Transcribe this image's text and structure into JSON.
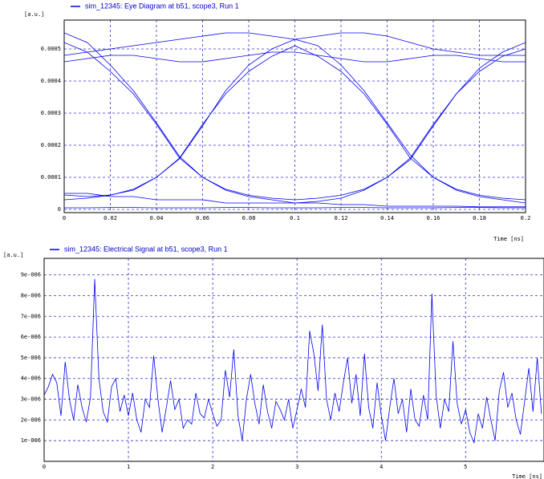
{
  "chart_data": [
    {
      "type": "eye",
      "y_unit": "[a.u.]",
      "x_label": "Time [ns]",
      "xlim": [
        0,
        0.2
      ],
      "xticks": [
        0,
        0.02,
        0.04,
        0.06,
        0.08,
        0.1,
        0.12,
        0.14,
        0.16,
        0.18,
        0.2
      ],
      "ylim": [
        -1e-05,
        0.00059
      ],
      "yticks": [
        0,
        0.0001,
        0.0002,
        0.0003,
        0.0004,
        0.0005
      ],
      "grid": true,
      "x": [
        0,
        0.01,
        0.02,
        0.03,
        0.04,
        0.05,
        0.06,
        0.07,
        0.08,
        0.09,
        0.1,
        0.11,
        0.12,
        0.13,
        0.14,
        0.15,
        0.16,
        0.17,
        0.18,
        0.19,
        0.2
      ],
      "series": [
        {
          "name": "sim_12345: Eye Diagram at b51, scope3, Run 1",
          "color": "#0000ee",
          "traces": [
            [
              0.00052,
              0.00049,
              0.00043,
              0.00036,
              0.000265,
              0.00016,
              0.0001,
              6.3e-05,
              4.4e-05,
              3.5e-05,
              3e-05,
              3.5e-05,
              4.4e-05,
              6.3e-05,
              0.0001,
              0.00016,
              0.000265,
              0.00036,
              0.00043,
              0.000477,
              0.0005
            ],
            [
              3e-05,
              3.5e-05,
              4.4e-05,
              6.3e-05,
              0.0001,
              0.00016,
              0.000265,
              0.00036,
              0.00043,
              0.000477,
              0.00051,
              0.000477,
              0.00043,
              0.00036,
              0.000265,
              0.00016,
              0.0001,
              6.3e-05,
              4.4e-05,
              3.5e-05,
              3e-05
            ],
            [
              0.00048,
              0.00049,
              0.0005,
              0.00051,
              0.00052,
              0.00053,
              0.00054,
              0.00055,
              0.00055,
              0.00054,
              0.00053,
              0.00051,
              0.00045,
              0.00037,
              0.00027,
              0.00017,
              0.0001,
              6e-05,
              4e-05,
              3e-05,
              2e-05
            ],
            [
              5e-05,
              5e-05,
              4e-05,
              4e-05,
              3e-05,
              3e-05,
              3e-05,
              2e-05,
              2e-05,
              2e-05,
              2e-05,
              2.5e-05,
              3.5e-05,
              6e-05,
              0.0001,
              0.000155,
              0.00026,
              0.00036,
              0.00044,
              0.00049,
              0.00052
            ],
            [
              0.00055,
              0.00052,
              0.00045,
              0.00037,
              0.00027,
              0.000165,
              0.0001,
              6e-05,
              4e-05,
              3e-05,
              2e-05,
              2e-05,
              1.5e-05,
              1.5e-05,
              1e-05,
              1e-05,
              1e-05,
              1e-05,
              8e-06,
              8e-06,
              8e-06
            ],
            [
              4.5e-05,
              4e-05,
              4.5e-05,
              6e-05,
              0.0001,
              0.000158,
              0.00026,
              0.00037,
              0.00045,
              0.0005,
              0.00053,
              0.00054,
              0.00055,
              0.00055,
              0.00054,
              0.00052,
              0.0005,
              0.00049,
              0.00048,
              0.00048,
              0.00048
            ],
            [
              0.00046,
              0.00047,
              0.00048,
              0.00048,
              0.00047,
              0.00046,
              0.00046,
              0.00047,
              0.00048,
              0.00049,
              0.00049,
              0.00048,
              0.00047,
              0.00046,
              0.00046,
              0.00047,
              0.00048,
              0.00048,
              0.00047,
              0.00046,
              0.00046
            ],
            [
              5e-06,
              5e-06,
              6e-06,
              6e-06,
              5e-06,
              5e-06,
              5e-06,
              6e-06,
              6e-06,
              5e-06,
              5e-06,
              5e-06,
              6e-06,
              6e-06,
              5e-06,
              5e-06,
              5e-06,
              6e-06,
              6e-06,
              5e-06,
              5e-06
            ]
          ]
        }
      ]
    },
    {
      "type": "line",
      "y_unit": "[a.u.]",
      "x_label": "Time [ns]",
      "xlim": [
        0,
        5.93
      ],
      "xticks": [
        0,
        1,
        2,
        3,
        4,
        5
      ],
      "ylim": [
        0,
        9.8e-06
      ],
      "yticks": [
        {
          "value": 1e-06,
          "label": "1e-006"
        },
        {
          "value": 2e-06,
          "label": "2e-006"
        },
        {
          "value": 3e-06,
          "label": "3e-006"
        },
        {
          "value": 4e-06,
          "label": "4e-006"
        },
        {
          "value": 5e-06,
          "label": "5e-006"
        },
        {
          "value": 6e-06,
          "label": "6e-006"
        },
        {
          "value": 7e-06,
          "label": "7e-006"
        },
        {
          "value": 8e-06,
          "label": "8e-006"
        },
        {
          "value": 9e-06,
          "label": "9e-006"
        }
      ],
      "grid": true,
      "x": [
        0,
        0.05,
        0.1,
        0.15,
        0.2,
        0.25,
        0.3,
        0.35,
        0.4,
        0.45,
        0.5,
        0.55,
        0.6,
        0.65,
        0.7,
        0.75,
        0.8,
        0.85,
        0.9,
        0.95,
        1,
        1.05,
        1.1,
        1.15,
        1.2,
        1.25,
        1.3,
        1.35,
        1.4,
        1.45,
        1.5,
        1.55,
        1.6,
        1.65,
        1.7,
        1.75,
        1.8,
        1.85,
        1.9,
        1.95,
        2,
        2.05,
        2.1,
        2.15,
        2.2,
        2.25,
        2.3,
        2.35,
        2.4,
        2.45,
        2.5,
        2.55,
        2.6,
        2.65,
        2.7,
        2.75,
        2.8,
        2.85,
        2.9,
        2.95,
        3,
        3.05,
        3.1,
        3.15,
        3.2,
        3.25,
        3.3,
        3.35,
        3.4,
        3.45,
        3.5,
        3.55,
        3.6,
        3.65,
        3.7,
        3.75,
        3.8,
        3.85,
        3.9,
        3.95,
        4,
        4.05,
        4.1,
        4.15,
        4.2,
        4.25,
        4.3,
        4.35,
        4.4,
        4.45,
        4.5,
        4.55,
        4.6,
        4.65,
        4.7,
        4.75,
        4.8,
        4.85,
        4.9,
        4.95,
        5,
        5.05,
        5.1,
        5.15,
        5.2,
        5.25,
        5.3,
        5.35,
        5.4,
        5.45,
        5.5,
        5.55,
        5.6,
        5.65,
        5.7,
        5.75,
        5.8,
        5.85,
        5.9
      ],
      "series": [
        {
          "name": "sim_12345: Electrical Signal at b51, scope3, Run 1",
          "color": "#0000ee",
          "values": [
            3.2e-06,
            3.6e-06,
            4.2e-06,
            3.8e-06,
            2.2e-06,
            4.8e-06,
            3e-06,
            2e-06,
            3.7e-06,
            2.6e-06,
            1.9e-06,
            3.1e-06,
            8.8e-06,
            4e-06,
            2.4e-06,
            1.9e-06,
            3.6e-06,
            4e-06,
            2.4e-06,
            3.2e-06,
            2.2e-06,
            3.3e-06,
            2e-06,
            1.4e-06,
            3e-06,
            2.6e-06,
            5.1e-06,
            3e-06,
            1.4e-06,
            2.6e-06,
            3.9e-06,
            2.5e-06,
            3e-06,
            1.6e-06,
            2e-06,
            1.8e-06,
            3.3e-06,
            2.3e-06,
            2.1e-06,
            3e-06,
            2.3e-06,
            1.7e-06,
            2e-06,
            4.4e-06,
            3.1e-06,
            5.4e-06,
            2.2e-06,
            1e-06,
            3e-06,
            4.2e-06,
            2.8e-06,
            1.8e-06,
            3.7e-06,
            2.4e-06,
            1.6e-06,
            2.9e-06,
            2.5e-06,
            2e-06,
            3e-06,
            1.6e-06,
            2.5e-06,
            3.5e-06,
            2.6e-06,
            6.3e-06,
            5.2e-06,
            3.4e-06,
            6.6e-06,
            3e-06,
            2e-06,
            3.3e-06,
            2.4e-06,
            3.8e-06,
            5e-06,
            2.8e-06,
            4.2e-06,
            2.2e-06,
            5.2e-06,
            2.6e-06,
            1.6e-06,
            3.8e-06,
            2.2e-06,
            1e-06,
            2.6e-06,
            4e-06,
            2.3e-06,
            3e-06,
            1.4e-06,
            3.5e-06,
            2e-06,
            1.7e-06,
            3.2e-06,
            2e-06,
            8.1e-06,
            3.2e-06,
            1.6e-06,
            3e-06,
            2.4e-06,
            5.8e-06,
            2.8e-06,
            1.8e-06,
            2.5e-06,
            1.4e-06,
            9e-07,
            2.3e-06,
            1.6e-06,
            3.1e-06,
            2e-06,
            1e-06,
            3.4e-06,
            4.3e-06,
            2.6e-06,
            3.3e-06,
            2e-06,
            1.3e-06,
            2.9e-06,
            4.5e-06,
            2.4e-06,
            5e-06,
            2.3e-06
          ]
        }
      ]
    }
  ]
}
